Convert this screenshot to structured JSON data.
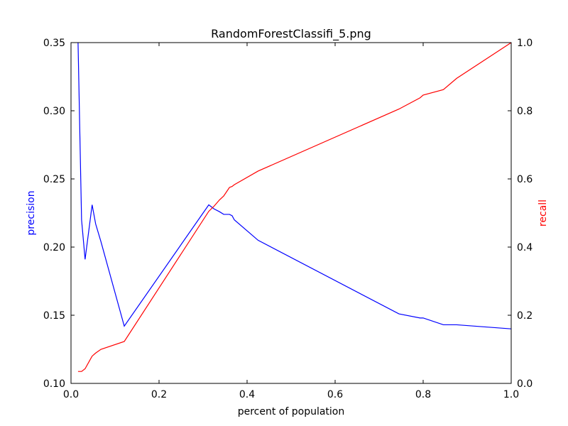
{
  "chart_data": {
    "type": "line",
    "title": "RandomForestClassifi_5.png",
    "xlabel": "percent of population",
    "ylabel_left": "precision",
    "ylabel_right": "recall",
    "xlim": [
      0.0,
      1.0
    ],
    "ylim_left": [
      0.1,
      0.35
    ],
    "ylim_right": [
      0.0,
      1.0
    ],
    "x_ticks": [
      "0.0",
      "0.2",
      "0.4",
      "0.6",
      "0.8",
      "1.0"
    ],
    "y_left_ticks": [
      "0.10",
      "0.15",
      "0.20",
      "0.25",
      "0.30",
      "0.35"
    ],
    "y_right_ticks": [
      "0.0",
      "0.2",
      "0.4",
      "0.6",
      "0.8",
      "1.0"
    ],
    "grid": false,
    "series": [
      {
        "axis": "left",
        "color": "#0000ff",
        "x": [
          0.016,
          0.024,
          0.032,
          0.048,
          0.056,
          0.068,
          0.121,
          0.313,
          0.325,
          0.337,
          0.347,
          0.36,
          0.366,
          0.371,
          0.425,
          0.745,
          0.793,
          0.8,
          0.846,
          0.876,
          1.0
        ],
        "y": [
          0.35,
          0.22,
          0.191,
          0.231,
          0.217,
          0.204,
          0.142,
          0.231,
          0.228,
          0.226,
          0.224,
          0.224,
          0.223,
          0.22,
          0.205,
          0.151,
          0.148,
          0.148,
          0.143,
          0.143,
          0.14
        ]
      },
      {
        "axis": "right",
        "color": "#ff0000",
        "x": [
          0.016,
          0.024,
          0.032,
          0.048,
          0.056,
          0.068,
          0.121,
          0.313,
          0.325,
          0.337,
          0.347,
          0.36,
          0.366,
          0.371,
          0.425,
          0.745,
          0.793,
          0.8,
          0.846,
          0.876,
          1.0
        ],
        "y": [
          0.035,
          0.035,
          0.043,
          0.08,
          0.089,
          0.1,
          0.123,
          0.505,
          0.52,
          0.538,
          0.55,
          0.575,
          0.578,
          0.583,
          0.623,
          0.805,
          0.838,
          0.846,
          0.862,
          0.895,
          1.0
        ]
      }
    ]
  }
}
